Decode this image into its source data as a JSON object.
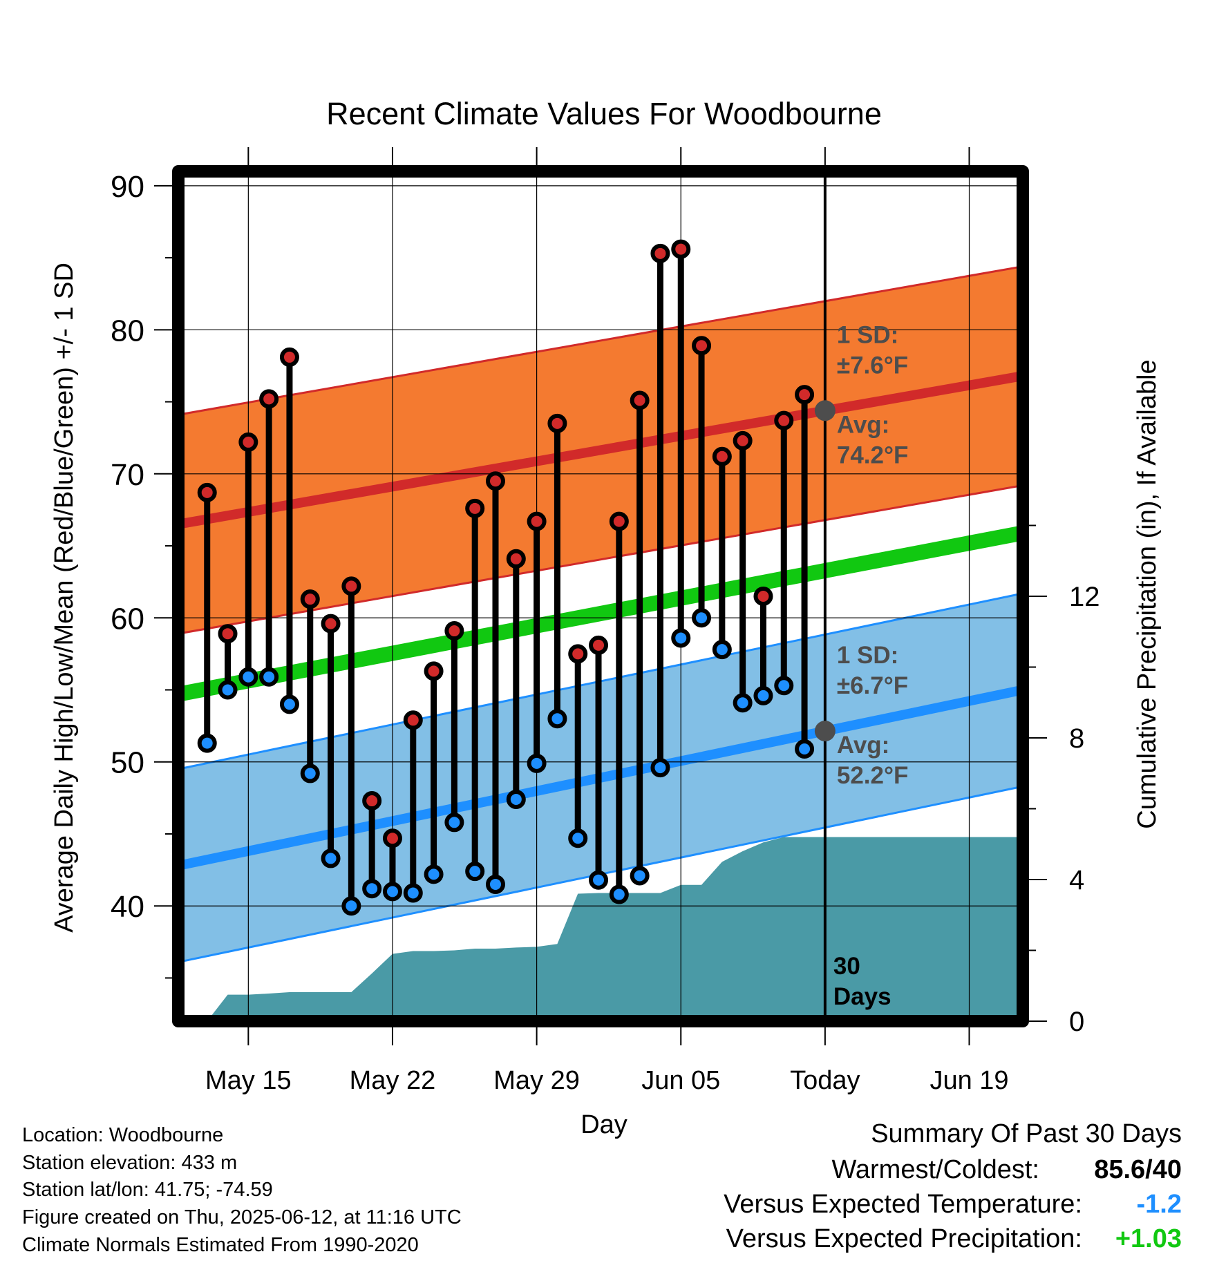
{
  "chart_data": {
    "type": "line",
    "title": "Recent Climate Values For Woodbourne",
    "xlabel": "Day",
    "ylabel": "Average Daily High/Low/Mean (Red/Blue/Green) +/- 1 SD",
    "y2label": "Cumulative Precipitation (in), If Available",
    "ylim": [
      32,
      91
    ],
    "y2lim": [
      0,
      24
    ],
    "y_ticks": [
      "40",
      "50",
      "60",
      "70",
      "80",
      "90"
    ],
    "y2_ticks": [
      "0",
      "4",
      "8",
      "12"
    ],
    "x_ticks": [
      "May 15",
      "May 22",
      "May 29",
      "Jun 05",
      "Today",
      "Jun 19"
    ],
    "x_tick_days": [
      15,
      22,
      29,
      36,
      43,
      50
    ],
    "x_range": [
      11.6,
      52.6
    ],
    "today_day": 43,
    "today_label": [
      "30",
      "Days"
    ],
    "high_band": {
      "sd_label": "1 SD:",
      "sd_value": "±7.6°F",
      "avg_label": "Avg:",
      "avg_value": "74.2°F",
      "avg_start": 66.5,
      "avg_end": 76.8,
      "sd": 7.6,
      "fill": "#f47a30",
      "line": "#d12a2a"
    },
    "low_band": {
      "sd_label": "1 SD:",
      "sd_value": "±6.7°F",
      "avg_label": "Avg:",
      "avg_value": "52.2°F",
      "avg_start": 42.8,
      "avg_end": 55.0,
      "sd": 6.7,
      "fill": "#82bfe6",
      "line": "#1e8fff"
    },
    "mean_line": {
      "start": 54.7,
      "end": 65.9,
      "color": "#11c811"
    },
    "daily": {
      "days": [
        13,
        14,
        15,
        16,
        17,
        18,
        19,
        20,
        21,
        22,
        23,
        24,
        25,
        26,
        27,
        28,
        29,
        30,
        31,
        32,
        33,
        34,
        35,
        36,
        37,
        38,
        39,
        40,
        41,
        42
      ],
      "highs": [
        68.7,
        58.9,
        72.2,
        75.2,
        78.1,
        61.3,
        59.6,
        62.2,
        47.3,
        44.7,
        52.9,
        56.3,
        59.1,
        67.6,
        69.5,
        64.1,
        66.7,
        73.5,
        57.5,
        58.1,
        66.7,
        75.1,
        85.3,
        85.6,
        78.9,
        71.2,
        72.3,
        61.5,
        73.7,
        75.5
      ],
      "lows": [
        51.3,
        55.0,
        55.9,
        55.9,
        54.0,
        49.2,
        43.3,
        40.0,
        41.2,
        41.0,
        40.9,
        42.2,
        45.8,
        42.4,
        41.5,
        47.4,
        49.9,
        53.0,
        44.7,
        41.8,
        40.8,
        42.1,
        49.6,
        58.6,
        60.0,
        57.8,
        54.1,
        54.6,
        55.3,
        50.9
      ],
      "high_color": "#d12a2a",
      "low_color": "#1e8fff"
    },
    "precip": {
      "days": [
        13,
        14,
        15,
        16,
        17,
        18,
        19,
        20,
        21,
        22,
        23,
        24,
        25,
        26,
        27,
        28,
        29,
        30,
        31,
        32,
        33,
        34,
        35,
        36,
        37,
        38,
        39,
        40,
        41,
        42,
        43,
        44,
        52.6
      ],
      "values": [
        0,
        0.75,
        0.75,
        0.78,
        0.82,
        0.82,
        0.82,
        0.82,
        1.35,
        1.9,
        1.98,
        1.98,
        2.0,
        2.05,
        2.05,
        2.08,
        2.1,
        2.18,
        3.6,
        3.62,
        3.62,
        3.62,
        3.62,
        3.85,
        3.85,
        4.5,
        4.8,
        5.05,
        5.2,
        5.2,
        5.2,
        5.2,
        5.2
      ],
      "color": "#4a9aa6"
    },
    "grid": true
  },
  "info": {
    "location": "Location: Woodbourne",
    "elevation": "Station elevation: 433 m",
    "latlon": "Station lat/lon: 41.75; -74.59",
    "created": "Figure created on Thu, 2025-06-12, at 11:16 UTC",
    "normals": "Climate Normals Estimated From 1990-2020"
  },
  "summary": {
    "title": "Summary Of Past 30 Days",
    "warmest_label": "Warmest/Coldest:",
    "warmest_value": "85.6/40",
    "temp_label": "Versus Expected Temperature:",
    "temp_value": "-1.2",
    "temp_color": "#1e8fff",
    "precip_label": "Versus Expected Precipitation:",
    "precip_value": "+1.03",
    "precip_color": "#11c811"
  }
}
